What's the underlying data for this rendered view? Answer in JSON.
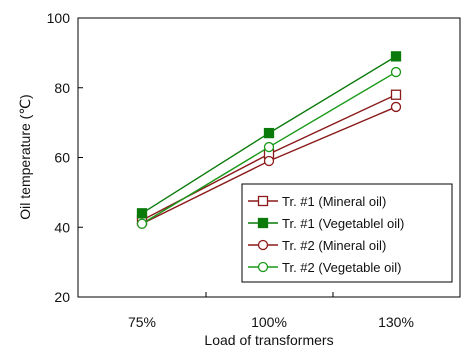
{
  "chart_data": {
    "type": "line",
    "title": "",
    "xlabel": "Load of transformers",
    "ylabel": "Oil temperature (℃)",
    "categories": [
      "75%",
      "100%",
      "130%"
    ],
    "ylim": [
      20,
      100
    ],
    "yticks": [
      20,
      40,
      60,
      80,
      100
    ],
    "grid": false,
    "legend_position": "bottom-right",
    "series": [
      {
        "name": "Tr. #1 (Mineral oil)",
        "values": [
          42,
          61,
          78
        ],
        "color": "#8b1a1a",
        "marker": "square-open"
      },
      {
        "name": "Tr. #1 (Vegetablel oil)",
        "values": [
          44,
          67,
          89
        ],
        "color": "#0a7a0a",
        "marker": "square-filled"
      },
      {
        "name": "Tr. #2 (Mineral oil)",
        "values": [
          41,
          59,
          74.5
        ],
        "color": "#8b1a1a",
        "marker": "circle-open"
      },
      {
        "name": "Tr. #2 (Vegetable oil)",
        "values": [
          41,
          63,
          84.5
        ],
        "color": "#1a9a1a",
        "marker": "circle-open"
      }
    ]
  }
}
